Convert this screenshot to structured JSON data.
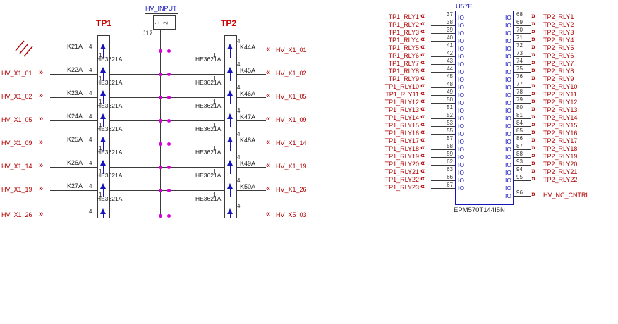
{
  "glyphs": {
    "out": "»",
    "in": "«"
  },
  "colors": {
    "port_red": "#b00000",
    "tp_red": "#cc0000",
    "blue": "#1414b8",
    "wire": "#3a3a3a",
    "junction": "#d400d4"
  },
  "left_section": {
    "tp1_label": "TP1",
    "tp2_label": "TP2",
    "hv_input_label": "HV_INPUT",
    "j17_label": "J17",
    "j17_pins": [
      "1",
      "2"
    ],
    "relay_part": "HE3621A",
    "pin_top": "4",
    "pin_bottom": "1",
    "rows": [
      {
        "ground": true,
        "left_port": "",
        "k_left": "K21A",
        "k_right": "K44A",
        "right_port": "HV_X1_01",
        "show_parts": true
      },
      {
        "ground": false,
        "left_port": "HV_X1_01",
        "k_left": "K22A",
        "k_right": "K45A",
        "right_port": "HV_X1_02",
        "show_parts": true
      },
      {
        "ground": false,
        "left_port": "HV_X1_02",
        "k_left": "K23A",
        "k_right": "K46A",
        "right_port": "HV_X1_05",
        "show_parts": true
      },
      {
        "ground": false,
        "left_port": "HV_X1_05",
        "k_left": "K24A",
        "k_right": "K47A",
        "right_port": "HV_X1_09",
        "show_parts": true
      },
      {
        "ground": false,
        "left_port": "HV_X1_09",
        "k_left": "K25A",
        "k_right": "K48A",
        "right_port": "HV_X1_14",
        "show_parts": true
      },
      {
        "ground": false,
        "left_port": "HV_X1_14",
        "k_left": "K26A",
        "k_right": "K49A",
        "right_port": "HV_X1_19",
        "show_parts": true
      },
      {
        "ground": false,
        "left_port": "HV_X1_19",
        "k_left": "K27A",
        "k_right": "K50A",
        "right_port": "HV_X1_26",
        "show_parts": true
      },
      {
        "ground": false,
        "left_port": "HV_X1_26",
        "k_left": "",
        "k_right": "",
        "right_port": "HV_X5_03",
        "show_parts": false
      }
    ]
  },
  "cpld": {
    "refdes": "U57E",
    "part": "EPM570T144I5N",
    "pin_name": "IO",
    "left_pins": [
      {
        "num": "37",
        "port": "TP1_RLY1"
      },
      {
        "num": "38",
        "port": "TP1_RLY2"
      },
      {
        "num": "39",
        "port": "TP1_RLY3"
      },
      {
        "num": "40",
        "port": "TP1_RLY4"
      },
      {
        "num": "41",
        "port": "TP1_RLY5"
      },
      {
        "num": "42",
        "port": "TP1_RLY6"
      },
      {
        "num": "43",
        "port": "TP1_RLY7"
      },
      {
        "num": "44",
        "port": "TP1_RLY8"
      },
      {
        "num": "45",
        "port": "TP1_RLY9"
      },
      {
        "num": "48",
        "port": "TP1_RLY10"
      },
      {
        "num": "49",
        "port": "TP1_RLY11"
      },
      {
        "num": "50",
        "port": "TP1_RLY12"
      },
      {
        "num": "51",
        "port": "TP1_RLY13"
      },
      {
        "num": "52",
        "port": "TP1_RLY14"
      },
      {
        "num": "53",
        "port": "TP1_RLY15"
      },
      {
        "num": "55",
        "port": "TP1_RLY16"
      },
      {
        "num": "57",
        "port": "TP1_RLY17"
      },
      {
        "num": "58",
        "port": "TP1_RLY18"
      },
      {
        "num": "59",
        "port": "TP1_RLY19"
      },
      {
        "num": "62",
        "port": "TP1_RLY20"
      },
      {
        "num": "63",
        "port": "TP1_RLY21"
      },
      {
        "num": "66",
        "port": "TP1_RLY22"
      },
      {
        "num": "67",
        "port": "TP1_RLY23"
      }
    ],
    "right_pins": [
      {
        "num": "68",
        "port": "TP2_RLY1"
      },
      {
        "num": "69",
        "port": "TP2_RLY2"
      },
      {
        "num": "70",
        "port": "TP2_RLY3"
      },
      {
        "num": "71",
        "port": "TP2_RLY4"
      },
      {
        "num": "72",
        "port": "TP2_RLY5"
      },
      {
        "num": "73",
        "port": "TP2_RLY6"
      },
      {
        "num": "74",
        "port": "TP2_RLY7"
      },
      {
        "num": "75",
        "port": "TP2_RLY8"
      },
      {
        "num": "76",
        "port": "TP2_RLY9"
      },
      {
        "num": "77",
        "port": "TP2_RLY10"
      },
      {
        "num": "78",
        "port": "TP2_RLY11"
      },
      {
        "num": "79",
        "port": "TP2_RLY12"
      },
      {
        "num": "80",
        "port": "TP2_RLY13"
      },
      {
        "num": "81",
        "port": "TP2_RLY14"
      },
      {
        "num": "84",
        "port": "TP2_RLY15"
      },
      {
        "num": "85",
        "port": "TP2_RLY16"
      },
      {
        "num": "86",
        "port": "TP2_RLY17"
      },
      {
        "num": "87",
        "port": "TP2_RLY18"
      },
      {
        "num": "88",
        "port": "TP2_RLY19"
      },
      {
        "num": "93",
        "port": "TP2_RLY20"
      },
      {
        "num": "94",
        "port": "TP2_RLY21"
      },
      {
        "num": "95",
        "port": "TP2_RLY22"
      },
      {
        "num": "",
        "port": ""
      },
      {
        "num": "96",
        "port": "HV_NC_CNTRL"
      }
    ]
  }
}
